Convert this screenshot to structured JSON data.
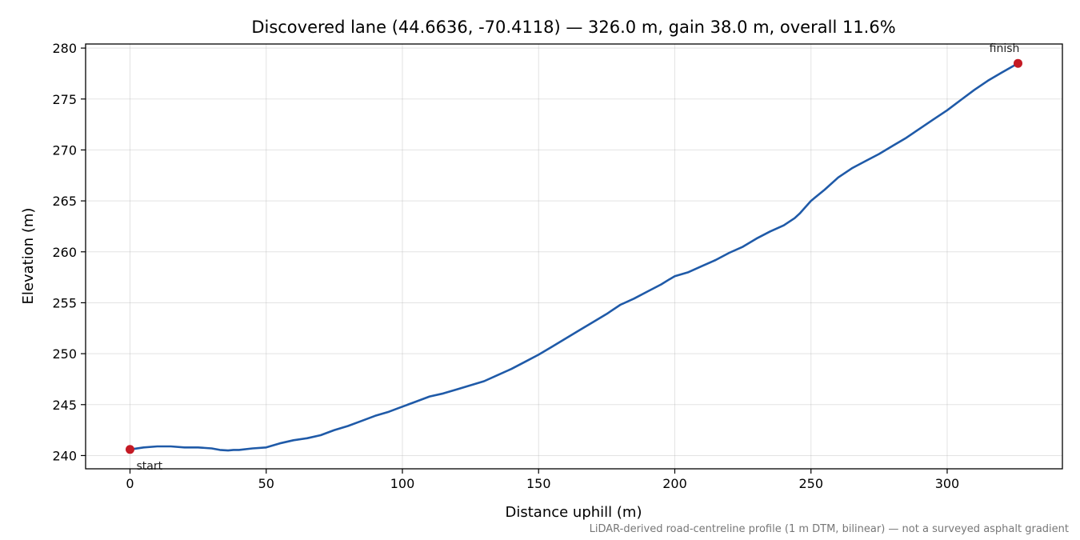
{
  "chart_data": {
    "type": "line",
    "title": "Discovered lane (44.6636, -70.4118) — 326.0 m, gain 38.0 m, overall 11.6%",
    "xlabel": "Distance uphill (m)",
    "ylabel": "Elevation (m)",
    "xlim": [
      -16.3,
      342.3
    ],
    "ylim": [
      238.7,
      280.4
    ],
    "xticks": [
      0,
      50,
      100,
      150,
      200,
      250,
      300
    ],
    "yticks": [
      240,
      245,
      250,
      255,
      260,
      265,
      270,
      275,
      280
    ],
    "grid": true,
    "footnote": "LiDAR-derived road-centreline profile (1 m DTM, bilinear) — not a surveyed asphalt gradient",
    "line_color": "#1f5aa8",
    "marker_color": "#c41a24",
    "series": [
      {
        "x": [
          0,
          5,
          10,
          15,
          20,
          25,
          30,
          33,
          36,
          38,
          40,
          45,
          50,
          55,
          60,
          65,
          70,
          75,
          80,
          85,
          90,
          95,
          100,
          105,
          110,
          115,
          120,
          125,
          130,
          135,
          140,
          145,
          150,
          155,
          160,
          165,
          170,
          175,
          180,
          185,
          190,
          195,
          198,
          200,
          205,
          210,
          215,
          220,
          225,
          230,
          235,
          240,
          244,
          246,
          250,
          255,
          260,
          265,
          270,
          275,
          280,
          285,
          290,
          295,
          300,
          305,
          310,
          315,
          320,
          326
        ],
        "y": [
          240.6,
          240.8,
          240.9,
          240.9,
          240.8,
          240.8,
          240.7,
          240.55,
          240.5,
          240.55,
          240.55,
          240.7,
          240.8,
          241.2,
          241.5,
          241.7,
          242.0,
          242.5,
          242.9,
          243.4,
          243.9,
          244.3,
          244.8,
          245.3,
          245.8,
          246.1,
          246.5,
          246.9,
          247.3,
          247.9,
          248.5,
          249.2,
          249.9,
          250.7,
          251.5,
          252.3,
          253.1,
          253.9,
          254.8,
          255.4,
          256.1,
          256.8,
          257.3,
          257.6,
          258.0,
          258.6,
          259.2,
          259.9,
          260.5,
          261.3,
          262.0,
          262.6,
          263.3,
          263.8,
          265.0,
          266.1,
          267.3,
          268.2,
          268.9,
          269.6,
          270.4,
          271.2,
          272.1,
          273.0,
          273.9,
          274.9,
          275.9,
          276.8,
          277.6,
          278.5
        ]
      }
    ],
    "annotations": [
      {
        "text": "start",
        "x": 0,
        "y": 240.6
      },
      {
        "text": "finish",
        "x": 326,
        "y": 278.5
      }
    ]
  }
}
